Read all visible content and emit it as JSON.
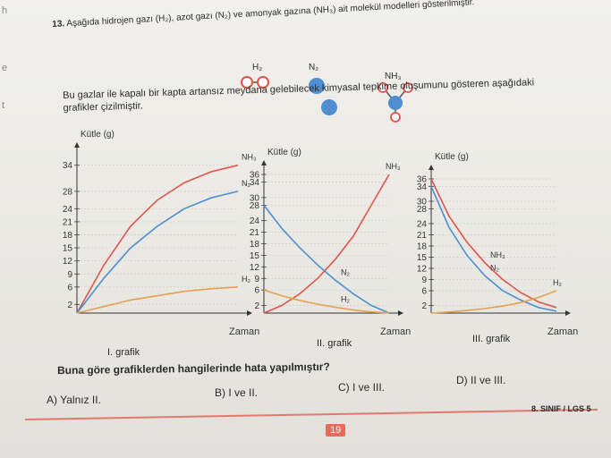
{
  "edge_marks": [
    "h",
    "e",
    "t"
  ],
  "question": {
    "number": "13.",
    "text": "Aşağıda hidrojen gazı (H₂), azot gazı (N₂) ve amonyak gazına (NH₃) ait molekül modelleri gösterilmiştir.",
    "molecules": [
      {
        "label": "H₂",
        "icon": "h2-molecule-icon"
      },
      {
        "label": "N₂",
        "icon": "n2-molecule-icon"
      },
      {
        "label": "NH₃",
        "icon": "nh3-molecule-icon"
      }
    ],
    "intro_line1": "Bu gazlar ile kapalı bir kapta artansız meydana gelebilecek kimyasal tepkime oluşumunu gösteren aşağıdaki",
    "intro_line2": "grafikler çizilmiştir.",
    "prompt": "Buna göre grafiklerden hangilerinde hata yapılmıştır?"
  },
  "chart_data": [
    {
      "type": "line",
      "caption": "I. grafik",
      "ylabel": "Kütle (g)",
      "xlabel": "Zaman",
      "yticks": [
        "2",
        "6",
        "9",
        "12",
        "15",
        "18",
        "21",
        "24",
        "28",
        "34"
      ],
      "series": [
        {
          "name": "NH₃",
          "color": "#e0544b",
          "points": [
            [
              0,
              0
            ],
            [
              1,
              11
            ],
            [
              2,
              20
            ],
            [
              3,
              26
            ],
            [
              4,
              30
            ],
            [
              5,
              32.5
            ],
            [
              6,
              34
            ]
          ]
        },
        {
          "name": "N₂",
          "color": "#4d8fd1",
          "points": [
            [
              0,
              0
            ],
            [
              1,
              8
            ],
            [
              2,
              15
            ],
            [
              3,
              20
            ],
            [
              4,
              24
            ],
            [
              5,
              26.5
            ],
            [
              6,
              28
            ]
          ]
        },
        {
          "name": "H₂",
          "color": "#e6a14e",
          "points": [
            [
              0,
              0
            ],
            [
              1,
              1.5
            ],
            [
              2,
              3
            ],
            [
              3,
              4
            ],
            [
              4,
              5
            ],
            [
              5,
              5.6
            ],
            [
              6,
              6
            ]
          ]
        }
      ]
    },
    {
      "type": "line",
      "caption": "II. grafik",
      "ylabel": "Kütle (g)",
      "xlabel": "Zaman",
      "yticks": [
        "2",
        "6",
        "9",
        "12",
        "15",
        "18",
        "21",
        "24",
        "28",
        "30",
        "34",
        "36"
      ],
      "series": [
        {
          "name": "NH₃",
          "color": "#e0544b",
          "points": [
            [
              0,
              0
            ],
            [
              1,
              2
            ],
            [
              2,
              5
            ],
            [
              3,
              9
            ],
            [
              4,
              14
            ],
            [
              5,
              20
            ],
            [
              6,
              28
            ],
            [
              7,
              36
            ]
          ]
        },
        {
          "name": "N₂",
          "color": "#4d8fd1",
          "points": [
            [
              0,
              28
            ],
            [
              1,
              22
            ],
            [
              2,
              17
            ],
            [
              3,
              12.5
            ],
            [
              4,
              8.5
            ],
            [
              5,
              5
            ],
            [
              6,
              2
            ],
            [
              7,
              0
            ]
          ]
        },
        {
          "name": "H₂",
          "color": "#e6a14e",
          "points": [
            [
              0,
              6
            ],
            [
              1,
              4.5
            ],
            [
              2,
              3.3
            ],
            [
              3,
              2.3
            ],
            [
              4,
              1.5
            ],
            [
              5,
              0.8
            ],
            [
              6,
              0.3
            ],
            [
              7,
              0
            ]
          ]
        }
      ]
    },
    {
      "type": "line",
      "caption": "III. grafik",
      "ylabel": "Kütle (g)",
      "xlabel": "Zaman",
      "yticks": [
        "2",
        "6",
        "9",
        "12",
        "15",
        "18",
        "21",
        "24",
        "28",
        "30",
        "34",
        "36"
      ],
      "series": [
        {
          "name": "NH₃",
          "color": "#e0544b",
          "points": [
            [
              0,
              36
            ],
            [
              1,
              26
            ],
            [
              2,
              19
            ],
            [
              3,
              13.5
            ],
            [
              4,
              9
            ],
            [
              5,
              5.5
            ],
            [
              6,
              3
            ],
            [
              7,
              1.5
            ]
          ]
        },
        {
          "name": "N₂",
          "color": "#4d8fd1",
          "points": [
            [
              0,
              34
            ],
            [
              1,
              23
            ],
            [
              2,
              15.5
            ],
            [
              3,
              10
            ],
            [
              4,
              6
            ],
            [
              5,
              3.5
            ],
            [
              6,
              1.5
            ],
            [
              7,
              0.5
            ]
          ]
        },
        {
          "name": "H₂",
          "color": "#e6a14e",
          "points": [
            [
              0,
              0
            ],
            [
              1,
              0.3
            ],
            [
              2,
              0.7
            ],
            [
              3,
              1.2
            ],
            [
              4,
              1.9
            ],
            [
              5,
              2.8
            ],
            [
              6,
              4.2
            ],
            [
              7,
              6
            ]
          ]
        }
      ]
    }
  ],
  "options": [
    {
      "text": "A) Yalnız II."
    },
    {
      "text": "B) I ve II."
    },
    {
      "text": "C) I ve III."
    },
    {
      "text": "D) II ve III."
    }
  ],
  "page_number": "19",
  "footer": "8. SINIF / LGS 5",
  "colors": {
    "nh3": "#e0544b",
    "n2": "#4d8fd1",
    "h2": "#e6a14e",
    "accent": "#e27a6c"
  }
}
